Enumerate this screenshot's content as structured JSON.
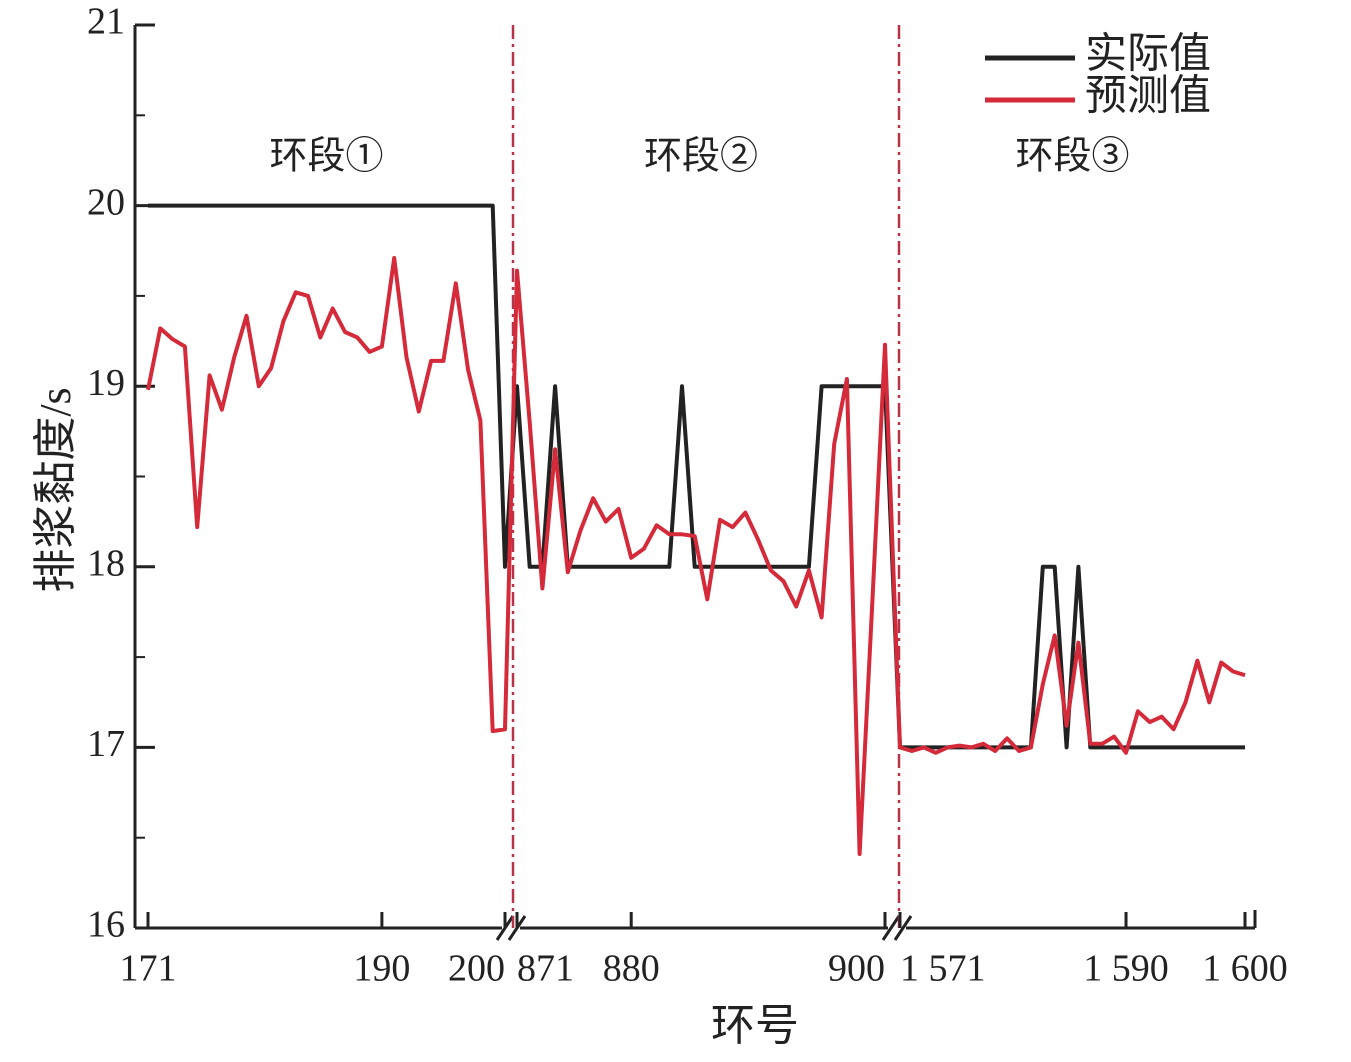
{
  "chart_data": {
    "type": "line",
    "x_label": "环号",
    "y_label": "排浆黏度/s",
    "ylim": [
      16,
      21
    ],
    "yticks": [
      16,
      17,
      18,
      19,
      20,
      21
    ],
    "yticks_minor": [
      16.5,
      17.5,
      18.5,
      19.5,
      20.5
    ],
    "segments": [
      {
        "xlim": [
          171,
          200
        ],
        "xticks": [
          171,
          190,
          200
        ],
        "annotation": "环段①"
      },
      {
        "xlim": [
          871,
          900
        ],
        "xticks": [
          871,
          880,
          900
        ],
        "annotation": "环段②"
      },
      {
        "xlim": [
          1571,
          1600
        ],
        "xticks": [
          {
            "value": 1571,
            "label": "1 571"
          },
          {
            "value": 1590,
            "label": "1 590"
          },
          {
            "value": 1600,
            "label": "1 600"
          }
        ],
        "annotation": "环段③"
      }
    ],
    "x": [
      171,
      172,
      173,
      174,
      175,
      176,
      177,
      178,
      179,
      180,
      181,
      182,
      183,
      184,
      185,
      186,
      187,
      188,
      189,
      190,
      191,
      192,
      193,
      194,
      195,
      196,
      197,
      198,
      199,
      200,
      871,
      872,
      873,
      874,
      875,
      876,
      877,
      878,
      879,
      880,
      881,
      882,
      883,
      884,
      885,
      886,
      887,
      888,
      889,
      890,
      891,
      892,
      893,
      894,
      895,
      896,
      897,
      898,
      899,
      900,
      1571,
      1572,
      1573,
      1574,
      1575,
      1576,
      1577,
      1578,
      1579,
      1580,
      1581,
      1582,
      1583,
      1584,
      1585,
      1586,
      1587,
      1588,
      1589,
      1590,
      1591,
      1592,
      1593,
      1594,
      1595,
      1596,
      1597,
      1598,
      1599,
      1600
    ],
    "legend": "upper right",
    "series": [
      {
        "name": "实际值",
        "color": "#222222",
        "values": [
          20,
          20,
          20,
          20,
          20,
          20,
          20,
          20,
          20,
          20,
          20,
          20,
          20,
          20,
          20,
          20,
          20,
          20,
          20,
          20,
          20,
          20,
          20,
          20,
          20,
          20,
          20,
          20,
          20,
          18,
          19,
          18,
          18,
          19,
          18,
          18,
          18,
          18,
          18,
          18,
          18,
          18,
          18,
          19,
          18,
          18,
          18,
          18,
          18,
          18,
          18,
          18,
          18,
          18,
          19,
          19,
          19,
          19,
          19,
          19,
          17,
          17,
          17,
          17,
          17,
          17,
          17,
          17,
          17,
          17,
          17,
          17,
          18,
          18,
          17,
          18,
          17,
          17,
          17,
          17,
          17,
          17,
          17,
          17,
          17,
          17,
          17,
          17,
          17,
          17
        ]
      },
      {
        "name": "预测值",
        "color": "#d42a3a",
        "values": [
          18.98,
          19.32,
          19.26,
          19.22,
          18.22,
          19.06,
          18.87,
          19.16,
          19.39,
          19.0,
          19.1,
          19.36,
          19.52,
          19.5,
          19.27,
          19.43,
          19.3,
          19.27,
          19.19,
          19.22,
          19.71,
          19.16,
          18.86,
          19.14,
          19.14,
          19.57,
          19.09,
          18.81,
          17.09,
          17.1,
          19.64,
          18.8,
          17.88,
          18.65,
          17.97,
          18.2,
          18.38,
          18.25,
          18.32,
          18.05,
          18.1,
          18.23,
          18.18,
          18.18,
          18.17,
          17.82,
          18.26,
          18.22,
          18.3,
          18.15,
          17.98,
          17.92,
          17.78,
          17.98,
          17.72,
          18.68,
          19.04,
          16.41,
          17.8,
          19.23,
          17.0,
          16.98,
          17.0,
          16.97,
          17.0,
          17.01,
          17.0,
          17.02,
          16.98,
          17.05,
          16.98,
          17.0,
          17.35,
          17.62,
          17.12,
          17.58,
          17.02,
          17.02,
          17.06,
          16.97,
          17.2,
          17.14,
          17.17,
          17.1,
          17.25,
          17.48,
          17.25,
          17.47,
          17.42,
          17.4
        ]
      }
    ]
  }
}
